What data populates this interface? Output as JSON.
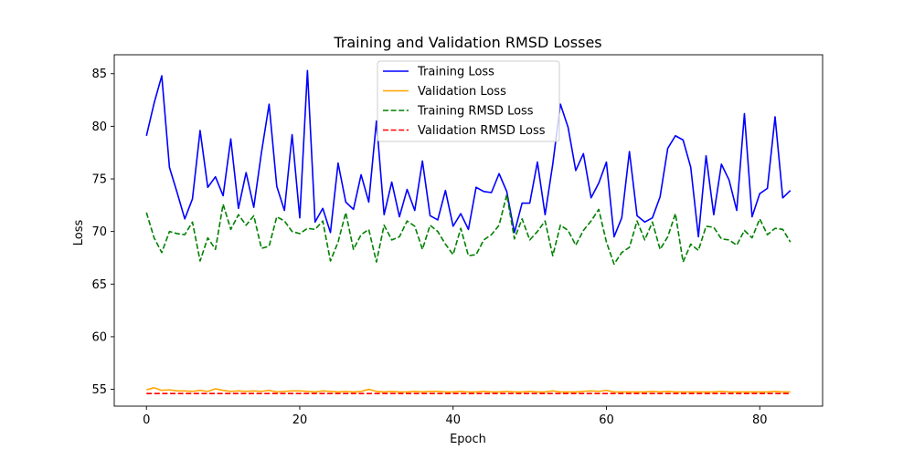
{
  "chart_data": {
    "type": "line",
    "title": "Training and Validation RMSD Losses",
    "xlabel": "Epoch",
    "ylabel": "Loss",
    "xlim": [
      -4.2,
      88.2
    ],
    "ylim": [
      53.4,
      86.8
    ],
    "xticks": [
      0,
      20,
      40,
      60,
      80
    ],
    "yticks": [
      55,
      60,
      65,
      70,
      75,
      80,
      85
    ],
    "grid": false,
    "legend_position": "top-center",
    "x": [
      0,
      1,
      2,
      3,
      4,
      5,
      6,
      7,
      8,
      9,
      10,
      11,
      12,
      13,
      14,
      15,
      16,
      17,
      18,
      19,
      20,
      21,
      22,
      23,
      24,
      25,
      26,
      27,
      28,
      29,
      30,
      31,
      32,
      33,
      34,
      35,
      36,
      37,
      38,
      39,
      40,
      41,
      42,
      43,
      44,
      45,
      46,
      47,
      48,
      49,
      50,
      51,
      52,
      53,
      54,
      55,
      56,
      57,
      58,
      59,
      60,
      61,
      62,
      63,
      64,
      65,
      66,
      67,
      68,
      69,
      70,
      71,
      72,
      73,
      74,
      75,
      76,
      77,
      78,
      79,
      80,
      81,
      82,
      83,
      84
    ],
    "series": [
      {
        "name": "Training Loss",
        "color": "#0000ff",
        "style": "solid",
        "values": [
          79.1,
          82.2,
          84.8,
          76.1,
          73.7,
          71.2,
          73.1,
          79.6,
          74.2,
          75.2,
          73.4,
          78.8,
          72.2,
          75.6,
          72.3,
          77.5,
          82.1,
          74.3,
          72.0,
          79.2,
          71.3,
          85.3,
          70.9,
          72.2,
          69.9,
          76.5,
          72.8,
          72.1,
          75.4,
          72.8,
          80.5,
          71.6,
          74.7,
          71.4,
          74.0,
          72.0,
          76.7,
          71.5,
          71.1,
          73.9,
          70.5,
          71.7,
          70.2,
          74.2,
          73.8,
          73.7,
          75.5,
          73.8,
          69.9,
          72.7,
          72.7,
          76.6,
          71.6,
          76.4,
          82.1,
          79.9,
          75.8,
          77.4,
          73.2,
          74.6,
          76.6,
          69.5,
          71.3,
          77.6,
          71.5,
          70.9,
          71.3,
          73.3,
          77.9,
          79.1,
          78.7,
          76.1,
          69.5,
          77.2,
          71.6,
          76.4,
          74.9,
          72.0,
          81.2,
          71.4,
          73.6,
          74.1,
          80.9,
          73.2,
          73.9
        ]
      },
      {
        "name": "Validation Loss",
        "color": "#ffa500",
        "style": "solid",
        "values": [
          54.95,
          55.15,
          54.9,
          54.95,
          54.85,
          54.85,
          54.8,
          54.9,
          54.8,
          55.05,
          54.9,
          54.8,
          54.85,
          54.8,
          54.85,
          54.8,
          54.9,
          54.75,
          54.8,
          54.85,
          54.85,
          54.8,
          54.75,
          54.85,
          54.8,
          54.75,
          54.8,
          54.75,
          54.8,
          55.0,
          54.8,
          54.75,
          54.8,
          54.75,
          54.75,
          54.8,
          54.75,
          54.8,
          54.8,
          54.75,
          54.75,
          54.8,
          54.75,
          54.75,
          54.8,
          54.75,
          54.75,
          54.8,
          54.75,
          54.75,
          54.8,
          54.75,
          54.75,
          54.85,
          54.75,
          54.75,
          54.75,
          54.8,
          54.85,
          54.8,
          54.9,
          54.75,
          54.75,
          54.75,
          54.75,
          54.75,
          54.8,
          54.75,
          54.8,
          54.75,
          54.75,
          54.75,
          54.75,
          54.75,
          54.75,
          54.8,
          54.75,
          54.75,
          54.75,
          54.75,
          54.75,
          54.75,
          54.8,
          54.75,
          54.75
        ]
      },
      {
        "name": "Training RMSD Loss",
        "color": "#008000",
        "style": "dashed",
        "values": [
          71.8,
          69.4,
          68.0,
          70.0,
          69.8,
          69.7,
          70.9,
          67.2,
          69.4,
          68.3,
          72.6,
          70.2,
          71.6,
          70.6,
          71.5,
          68.4,
          68.6,
          71.4,
          71.0,
          70.0,
          69.8,
          70.3,
          70.2,
          71.0,
          67.2,
          69.0,
          71.8,
          68.3,
          69.7,
          70.2,
          67.1,
          70.6,
          69.2,
          69.5,
          71.0,
          70.5,
          68.3,
          70.6,
          70.0,
          68.8,
          67.8,
          70.3,
          67.7,
          67.8,
          69.2,
          69.7,
          70.6,
          73.5,
          69.3,
          71.2,
          69.2,
          70.0,
          71.0,
          67.7,
          70.6,
          70.1,
          68.7,
          70.1,
          71.0,
          72.1,
          69.0,
          66.9,
          68.0,
          68.5,
          71.0,
          69.2,
          70.9,
          68.3,
          69.5,
          71.7,
          67.1,
          68.8,
          68.2,
          70.5,
          70.4,
          69.3,
          69.2,
          68.7,
          70.1,
          69.4,
          71.2,
          69.7,
          70.3,
          70.2,
          69.0
        ]
      },
      {
        "name": "Validation RMSD Loss",
        "color": "#ff0000",
        "style": "dashed",
        "values": [
          54.6,
          54.6,
          54.6,
          54.6,
          54.6,
          54.6,
          54.6,
          54.6,
          54.6,
          54.6,
          54.6,
          54.6,
          54.6,
          54.6,
          54.6,
          54.6,
          54.6,
          54.6,
          54.6,
          54.6,
          54.6,
          54.6,
          54.6,
          54.6,
          54.6,
          54.6,
          54.6,
          54.6,
          54.6,
          54.6,
          54.6,
          54.6,
          54.6,
          54.6,
          54.6,
          54.6,
          54.6,
          54.6,
          54.6,
          54.6,
          54.6,
          54.6,
          54.6,
          54.6,
          54.6,
          54.6,
          54.6,
          54.6,
          54.6,
          54.6,
          54.6,
          54.6,
          54.6,
          54.6,
          54.6,
          54.6,
          54.6,
          54.6,
          54.6,
          54.6,
          54.6,
          54.6,
          54.6,
          54.6,
          54.6,
          54.6,
          54.6,
          54.6,
          54.6,
          54.6,
          54.6,
          54.6,
          54.6,
          54.6,
          54.6,
          54.6,
          54.6,
          54.6,
          54.6,
          54.6,
          54.6,
          54.6,
          54.6,
          54.6,
          54.6
        ]
      }
    ]
  }
}
